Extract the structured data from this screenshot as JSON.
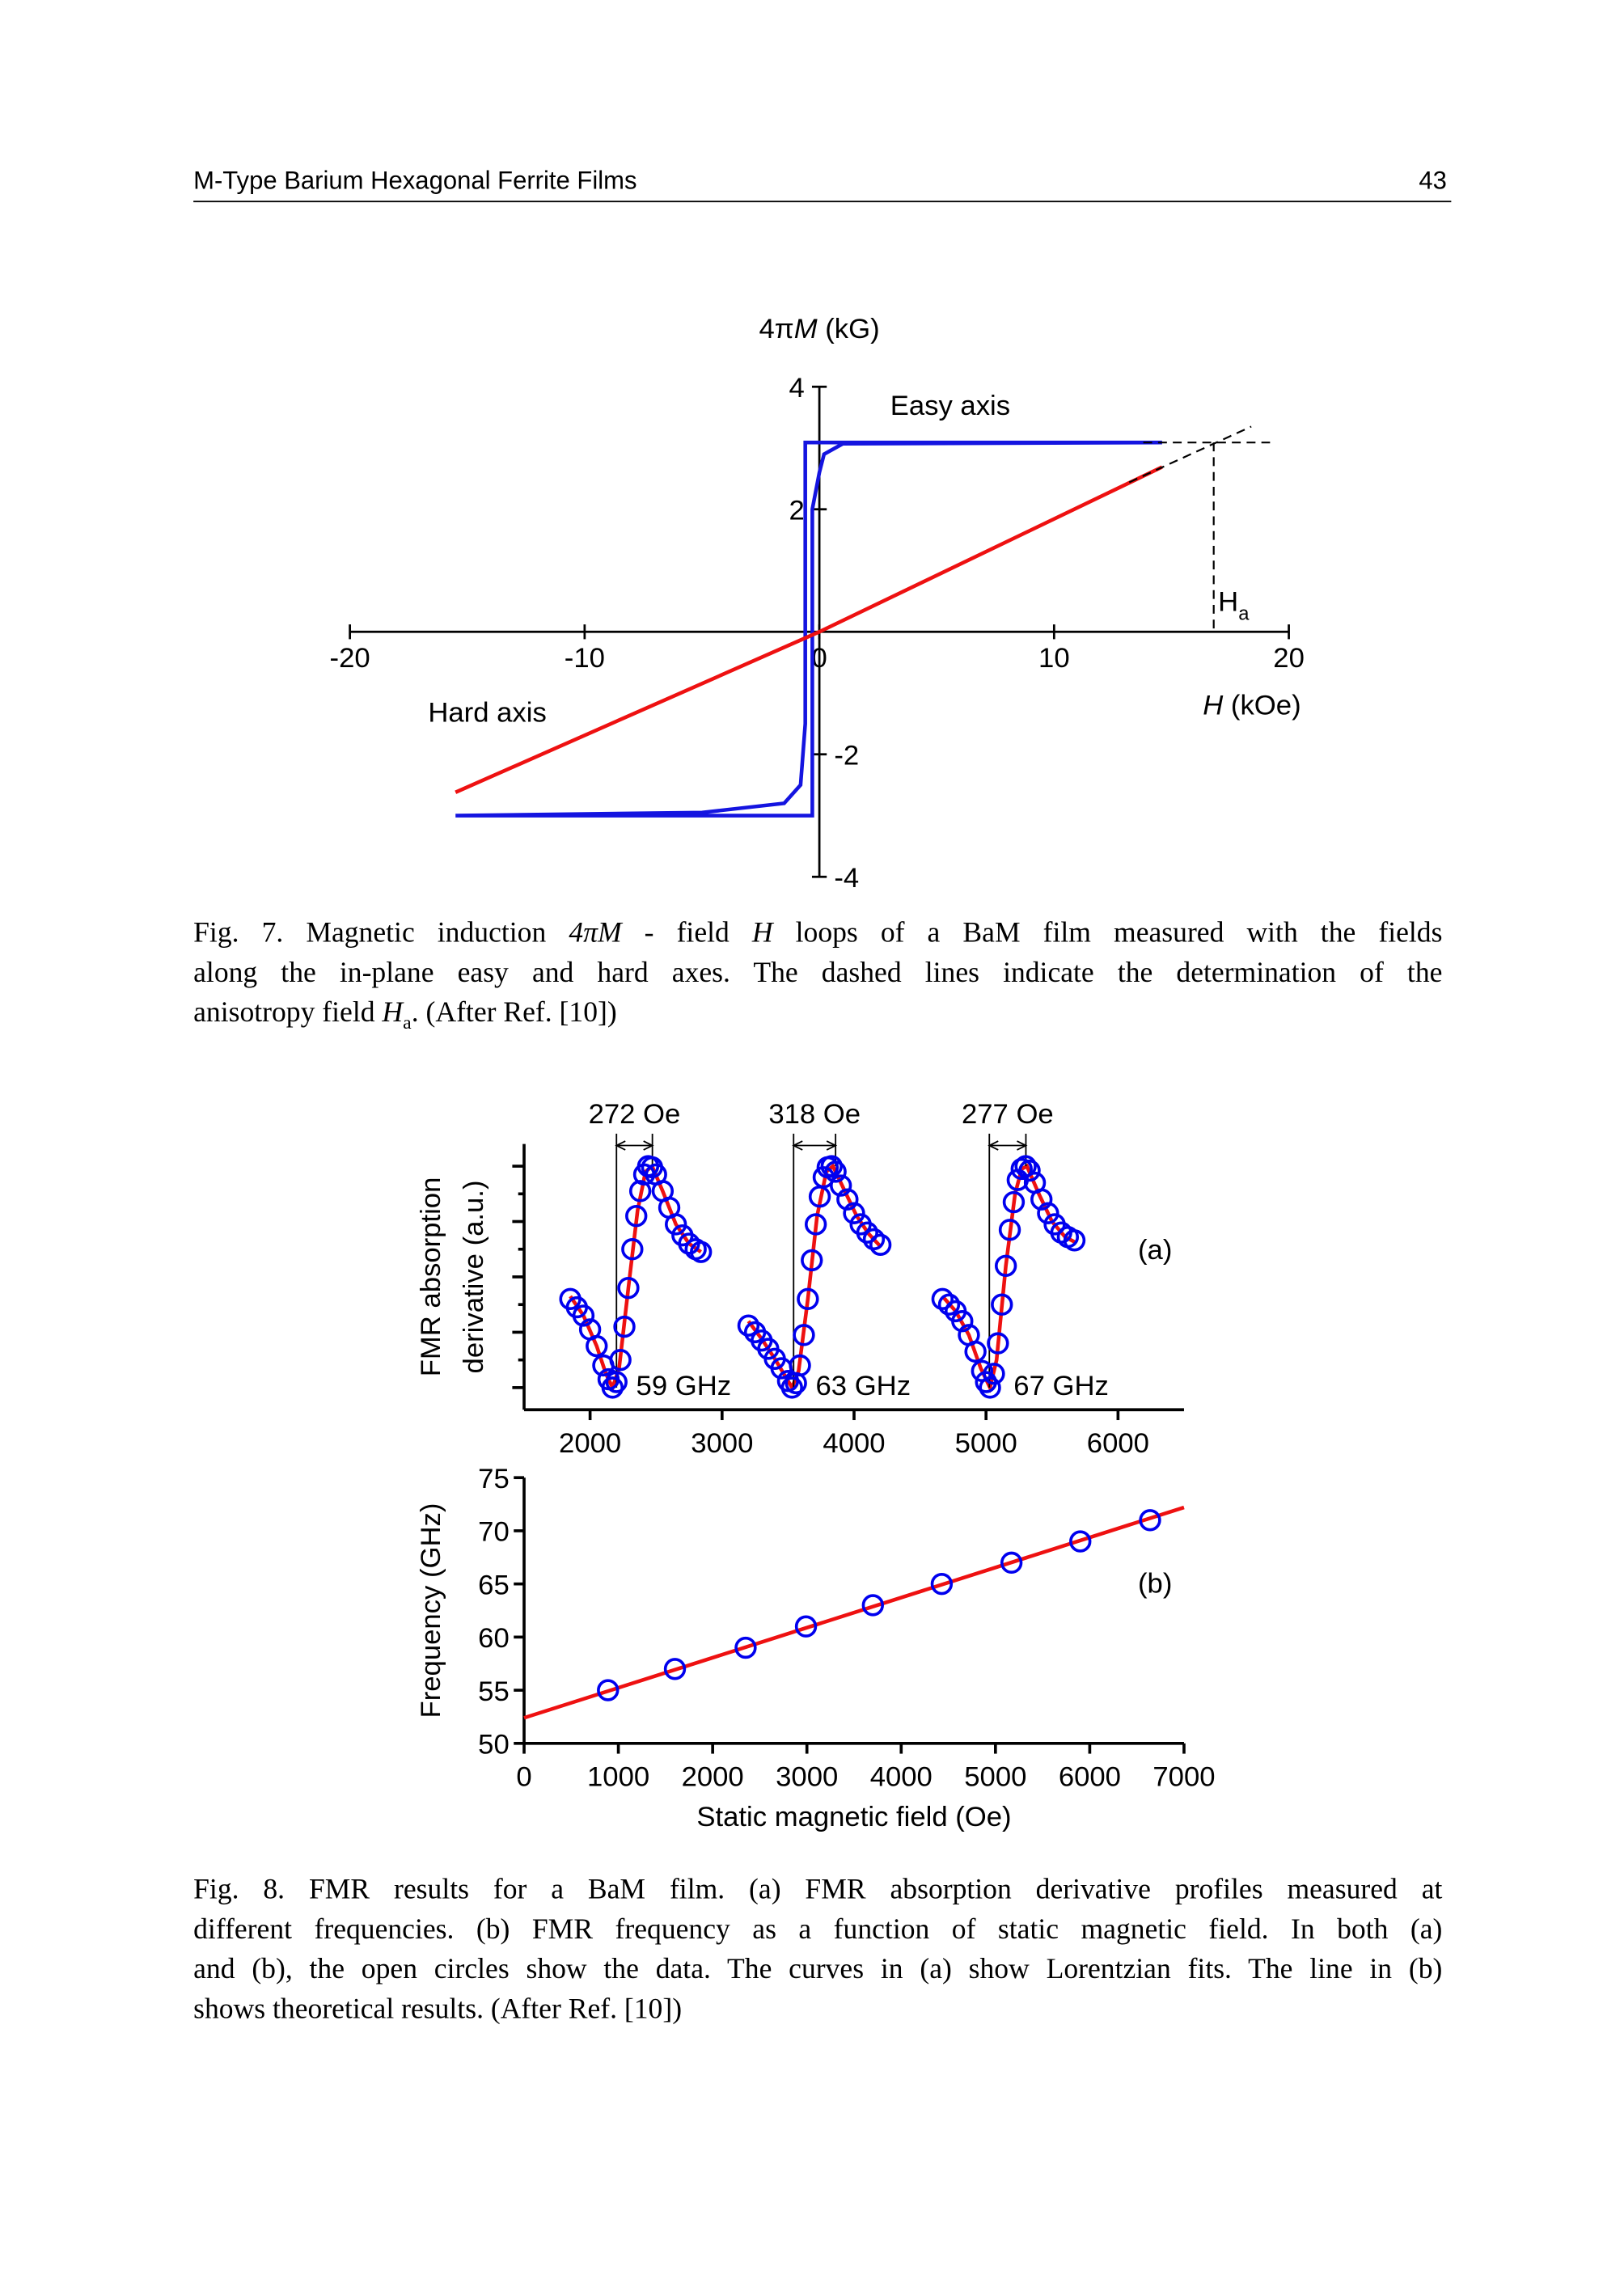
{
  "header": {
    "title": "M-Type Barium Hexagonal Ferrite Films",
    "page": "43"
  },
  "chart_data": [
    {
      "type": "line",
      "ylabel": [
        "4π",
        "M",
        " (kG)"
      ],
      "xlabel": [
        "H",
        " (kOe)"
      ],
      "xlim": [
        -20,
        20
      ],
      "ylim": [
        -4,
        4
      ],
      "xticks": [
        -20,
        -10,
        0,
        10,
        20
      ],
      "yticks": [
        -4,
        -2,
        2,
        4
      ],
      "series": [
        {
          "name": "Easy axis",
          "color": "#1414e0",
          "x": [
            -15.5,
            -5,
            -1.5,
            -0.8,
            -0.6,
            -0.6,
            14.6,
            1,
            0.2,
            0,
            -0.3,
            -0.3,
            -15.5
          ],
          "y": [
            -3.0,
            -2.95,
            -2.8,
            -2.5,
            -1.5,
            3.09,
            3.09,
            3.07,
            2.9,
            2.6,
            2.0,
            -3.0,
            -3.0
          ]
        },
        {
          "name": "Hard axis",
          "color": "#ee1111",
          "x": [
            -15.5,
            0,
            14.6
          ],
          "y": [
            -2.62,
            0,
            2.69
          ]
        },
        {
          "color": "#000000",
          "dashed": true,
          "x": [
            13.8,
            19.2
          ],
          "y": [
            3.09,
            3.09
          ]
        },
        {
          "color": "#000000",
          "dashed": true,
          "x": [
            13.2,
            18.4
          ],
          "y": [
            2.44,
            3.35
          ]
        },
        {
          "color": "#000000",
          "dashed": true,
          "x": [
            16.8,
            16.8
          ],
          "y": [
            3.09,
            0
          ]
        }
      ],
      "annotation": {
        "text": "H",
        "subscript": "a",
        "x": 16.8
      }
    },
    {
      "type": "scatter",
      "panel": "(a)",
      "ylabel": [
        "FMR absorption",
        "derivative (a.u.)"
      ],
      "xlim": [
        1500,
        6500
      ],
      "ylim": [
        -0.4,
        4.4
      ],
      "xticks": [
        2000,
        3000,
        4000,
        5000,
        6000
      ],
      "yticks_unlabeled": [
        0,
        0.5,
        1,
        1.5,
        2,
        2.5,
        3,
        3.5,
        4
      ],
      "series": [
        {
          "name": "59 GHz",
          "color": "#0000ee",
          "x": [
            1850,
            1900,
            1950,
            2000,
            2050,
            2100,
            2140,
            2170,
            2200,
            2230,
            2260,
            2290,
            2320,
            2350,
            2380,
            2410,
            2440,
            2470,
            2500,
            2550,
            2600,
            2650,
            2700,
            2750,
            2800,
            2840
          ],
          "y": [
            1.6,
            1.45,
            1.3,
            1.05,
            0.75,
            0.4,
            0.15,
            0.0,
            0.1,
            0.5,
            1.1,
            1.8,
            2.5,
            3.1,
            3.55,
            3.85,
            4.0,
            3.98,
            3.85,
            3.55,
            3.25,
            2.95,
            2.75,
            2.6,
            2.5,
            2.45
          ]
        },
        {
          "name": "63 GHz",
          "color": "#0000ee",
          "x": [
            3200,
            3250,
            3300,
            3350,
            3400,
            3450,
            3500,
            3530,
            3560,
            3590,
            3620,
            3650,
            3680,
            3710,
            3740,
            3770,
            3800,
            3830,
            3860,
            3900,
            3950,
            4000,
            4050,
            4100,
            4150,
            4200
          ],
          "y": [
            1.12,
            1.0,
            0.85,
            0.7,
            0.52,
            0.35,
            0.12,
            0.0,
            0.08,
            0.4,
            0.95,
            1.6,
            2.3,
            2.95,
            3.45,
            3.8,
            3.98,
            4.0,
            3.9,
            3.65,
            3.4,
            3.15,
            2.95,
            2.8,
            2.68,
            2.58
          ]
        },
        {
          "name": "67 GHz",
          "color": "#0000ee",
          "x": [
            4670,
            4720,
            4770,
            4820,
            4870,
            4920,
            4970,
            5000,
            5030,
            5060,
            5090,
            5120,
            5150,
            5180,
            5210,
            5240,
            5270,
            5300,
            5330,
            5370,
            5420,
            5470,
            5520,
            5570,
            5620,
            5670
          ],
          "y": [
            1.6,
            1.5,
            1.38,
            1.2,
            0.95,
            0.65,
            0.3,
            0.1,
            0.0,
            0.25,
            0.8,
            1.5,
            2.2,
            2.85,
            3.35,
            3.75,
            3.95,
            4.0,
            3.92,
            3.7,
            3.4,
            3.15,
            2.95,
            2.8,
            2.72,
            2.66
          ]
        },
        {
          "color": "#ee1111",
          "line": true,
          "x": [
            1850,
            1950,
            2050,
            2120,
            2170,
            2220,
            2290,
            2360,
            2420,
            2470,
            2550,
            2650,
            2750,
            2840
          ],
          "y": [
            1.65,
            1.3,
            0.75,
            0.25,
            0.0,
            0.35,
            1.8,
            3.2,
            3.9,
            4.0,
            3.55,
            2.95,
            2.6,
            2.45
          ]
        },
        {
          "color": "#ee1111",
          "line": true,
          "x": [
            3200,
            3300,
            3400,
            3480,
            3530,
            3580,
            3650,
            3720,
            3790,
            3840,
            3920,
            4020,
            4110,
            4200
          ],
          "y": [
            1.2,
            0.88,
            0.52,
            0.2,
            0.0,
            0.3,
            1.6,
            3.1,
            3.9,
            4.0,
            3.6,
            3.1,
            2.78,
            2.55
          ]
        },
        {
          "color": "#ee1111",
          "line": true,
          "x": [
            4670,
            4770,
            4870,
            4960,
            5030,
            5080,
            5150,
            5220,
            5270,
            5310,
            5400,
            5500,
            5600,
            5680
          ],
          "y": [
            1.65,
            1.38,
            0.95,
            0.35,
            0.0,
            0.5,
            2.2,
            3.5,
            3.95,
            4.0,
            3.5,
            3.0,
            2.72,
            2.62
          ]
        }
      ],
      "linewidths": [
        {
          "text": "272 Oe",
          "x": [
            2200,
            2472
          ]
        },
        {
          "text": "318 Oe",
          "x": [
            3542,
            3860
          ]
        },
        {
          "text": "277 Oe",
          "x": [
            5025,
            5302
          ]
        }
      ]
    },
    {
      "type": "scatter",
      "panel": "(b)",
      "ylabel": [
        "Frequency (GHz)"
      ],
      "xlabel": "Static magnetic field (Oe)",
      "xlim": [
        0,
        7000
      ],
      "ylim": [
        50,
        75
      ],
      "xticks": [
        0,
        1000,
        2000,
        3000,
        4000,
        5000,
        6000,
        7000
      ],
      "yticks": [
        50,
        55,
        60,
        65,
        70,
        75
      ],
      "series": [
        {
          "color": "#0000ee",
          "x": [
            890,
            1600,
            2350,
            2990,
            3700,
            4430,
            5170,
            5900,
            6640
          ],
          "y": [
            55,
            57,
            59,
            61,
            63,
            65,
            67,
            69,
            71
          ]
        },
        {
          "color": "#ee1111",
          "line": true,
          "x": [
            0,
            7000
          ],
          "y": [
            52.4,
            72.2
          ]
        }
      ]
    }
  ],
  "captions": [
    [
      [
        {
          "text": "Fig. 7. Magnetic induction "
        },
        {
          "text": "4πM",
          "italic": true
        },
        {
          "text": "  - field "
        },
        {
          "text": "H",
          "italic": true
        },
        {
          "text": "  loops of a BaM film measured with the fields"
        }
      ],
      [
        {
          "text": "along the in-plane easy and hard axes. The dashed lines indicate the determination of the"
        }
      ],
      [
        {
          "text": "anisotropy field "
        },
        {
          "text": "H",
          "italic": true
        },
        {
          "text": "a",
          "sub": true
        },
        {
          "text": ". (After Ref. [10])"
        }
      ]
    ],
    [
      [
        {
          "text": "Fig. 8. FMR results for a BaM film. (a) FMR absorption derivative profiles measured at"
        }
      ],
      [
        {
          "text": "different frequencies. (b) FMR frequency as a function of static magnetic field. In both (a)"
        }
      ],
      [
        {
          "text": "and (b), the open circles show the data. The curves in (a) show Lorentzian fits. The line in (b)"
        }
      ],
      [
        {
          "text": "shows theoretical results. (After Ref. [10])"
        }
      ]
    ]
  ]
}
